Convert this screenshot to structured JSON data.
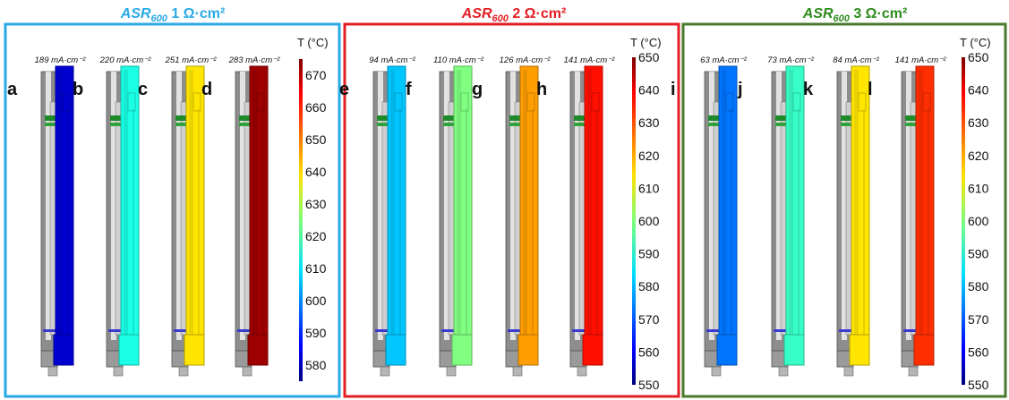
{
  "panels_data": [
    {
      "title_symbol": "ASR",
      "title_sub": "600",
      "title_value": "1 Ω·cm²",
      "title_color": "#29a9e6",
      "border_color": "#29a9e6",
      "colorbar_label": "T (°C)",
      "colorbar_min": 575,
      "colorbar_max": 675,
      "colorbar_ticks": [
        "580",
        "590",
        "600",
        "610",
        "620",
        "630",
        "640",
        "650",
        "660",
        "670"
      ],
      "cells": [
        {
          "letter": "a",
          "current": "189 mA·cm⁻²",
          "temperature": 583
        },
        {
          "letter": "b",
          "current": "220 mA·cm⁻²",
          "temperature": 615
        },
        {
          "letter": "c",
          "current": "251 mA·cm⁻²",
          "temperature": 640
        },
        {
          "letter": "d",
          "current": "283 mA·cm⁻²",
          "temperature": 672
        }
      ]
    },
    {
      "title_symbol": "ASR",
      "title_sub": "600",
      "title_value": "2 Ω·cm²",
      "title_color": "#e31e24",
      "border_color": "#e31e24",
      "colorbar_label": "T (°C)",
      "colorbar_min": 550,
      "colorbar_max": 650,
      "colorbar_ticks": [
        "550",
        "560",
        "570",
        "580",
        "590",
        "600",
        "610",
        "620",
        "630",
        "640",
        "650"
      ],
      "cells": [
        {
          "letter": "e",
          "current": "94 mA·cm⁻²",
          "temperature": 582
        },
        {
          "letter": "f",
          "current": "110 mA·cm⁻²",
          "temperature": 600
        },
        {
          "letter": "g",
          "current": "126 mA·cm⁻²",
          "temperature": 622
        },
        {
          "letter": "h",
          "current": "141 mA·cm⁻²",
          "temperature": 636
        }
      ]
    },
    {
      "title_symbol": "ASR",
      "title_sub": "600",
      "title_value": "3 Ω·cm²",
      "title_color": "#2e8b1e",
      "border_color": "#4a7a2e",
      "colorbar_label": "T (°C)",
      "colorbar_min": 550,
      "colorbar_max": 650,
      "colorbar_ticks": [
        "550",
        "560",
        "570",
        "580",
        "590",
        "600",
        "610",
        "620",
        "630",
        "640",
        "650"
      ],
      "cells": [
        {
          "letter": "i",
          "current": "63 mA·cm⁻²",
          "temperature": 574
        },
        {
          "letter": "j",
          "current": "73 mA·cm⁻²",
          "temperature": 593
        },
        {
          "letter": "k",
          "current": "84 mA·cm⁻²",
          "temperature": 615
        },
        {
          "letter": "l",
          "current": "141 mA·cm⁻²",
          "temperature": 633
        }
      ]
    }
  ]
}
